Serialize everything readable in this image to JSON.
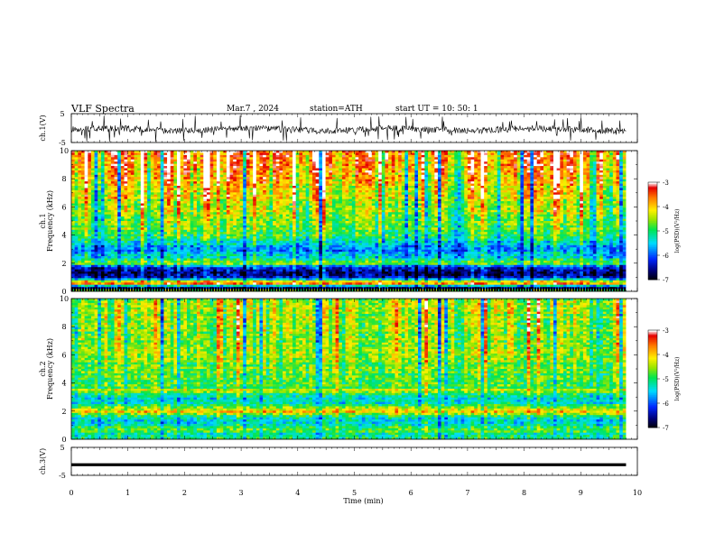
{
  "header": {
    "title": "VLF Spectra",
    "date": "Mar.7 , 2024",
    "station": "station=ATH",
    "start_ut": "start UT =  10: 50: 1"
  },
  "chart_data": [
    {
      "type": "line",
      "name": "ch1-waveform",
      "ylabel": "ch.1(V)",
      "ylim": [
        -5,
        5
      ],
      "yticks": [
        "5",
        "-5"
      ],
      "xlim": [
        0,
        10
      ],
      "data_end_min": 9.8,
      "description_of_signal": "dense noisy waveform centered near -0.5 V, peaks to about +4 V and down to about -5 V"
    },
    {
      "type": "heatmap",
      "name": "ch1-spectrogram",
      "ylabel": "ch.1\nFrequency (kHz)",
      "ylim": [
        0,
        10
      ],
      "yticks": [
        "0",
        "2",
        "4",
        "6",
        "8",
        "10"
      ],
      "xlim": [
        0,
        10
      ],
      "data_end_min": 9.8,
      "colorbar": {
        "label": "log(PSD)(V²/Hz)",
        "range": [
          -7,
          -3
        ],
        "ticks": [
          "-3",
          "-4",
          "-5",
          "-6",
          "-7"
        ]
      },
      "profile_khz_to_logpsd": [
        [
          0.0,
          -3.6
        ],
        [
          0.3,
          -7.0
        ],
        [
          0.5,
          -3.5
        ],
        [
          0.7,
          -4.2
        ],
        [
          1.0,
          -6.4
        ],
        [
          1.2,
          -6.6
        ],
        [
          1.5,
          -6.5
        ],
        [
          1.7,
          -6.2
        ],
        [
          2.0,
          -4.6
        ],
        [
          2.3,
          -5.2
        ],
        [
          2.6,
          -5.6
        ],
        [
          3.0,
          -5.8
        ],
        [
          3.4,
          -5.5
        ],
        [
          4.0,
          -4.9
        ],
        [
          5.0,
          -4.6
        ],
        [
          6.0,
          -4.4
        ],
        [
          7.0,
          -4.2
        ],
        [
          8.0,
          -3.9
        ],
        [
          9.0,
          -3.7
        ],
        [
          10.0,
          -3.6
        ]
      ]
    },
    {
      "type": "heatmap",
      "name": "ch2-spectrogram",
      "ylabel": "ch.2\nFrequency (kHz)",
      "ylim": [
        0,
        10
      ],
      "yticks": [
        "0",
        "2",
        "4",
        "6",
        "8",
        "10"
      ],
      "xlim": [
        0,
        10
      ],
      "data_end_min": 9.8,
      "colorbar": {
        "label": "log(PSD)(V²/Hz)",
        "range": [
          -7,
          -3
        ],
        "ticks": [
          "-3",
          "-4",
          "-5",
          "-6",
          "-7"
        ]
      },
      "profile_khz_to_logpsd": [
        [
          0.0,
          -4.8
        ],
        [
          0.3,
          -5.3
        ],
        [
          0.6,
          -4.6
        ],
        [
          1.0,
          -5.3
        ],
        [
          1.5,
          -5.4
        ],
        [
          1.8,
          -4.4
        ],
        [
          2.0,
          -3.7
        ],
        [
          2.2,
          -4.6
        ],
        [
          2.6,
          -5.2
        ],
        [
          3.0,
          -5.4
        ],
        [
          3.5,
          -4.4
        ],
        [
          3.7,
          -4.9
        ],
        [
          4.5,
          -4.7
        ],
        [
          6.0,
          -4.6
        ],
        [
          8.0,
          -4.5
        ],
        [
          10.0,
          -4.5
        ]
      ]
    },
    {
      "type": "line",
      "name": "ch3-waveform",
      "ylabel": "ch.3(V)",
      "ylim": [
        -5,
        5
      ],
      "yticks": [
        "5",
        "-5"
      ],
      "xlim": [
        0,
        10
      ],
      "data_end_min": 9.8,
      "constant_level_v": -1.2,
      "xlabel": "Time  (min)",
      "xticks": [
        "0",
        "1",
        "2",
        "3",
        "4",
        "5",
        "6",
        "7",
        "8",
        "9",
        "10"
      ]
    }
  ]
}
